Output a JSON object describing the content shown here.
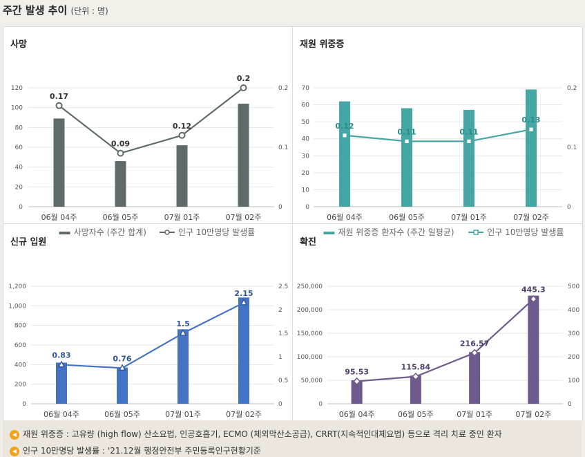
{
  "page": {
    "title": "주간 발생 추이",
    "unit": "(단위 : 명)"
  },
  "chart_data": [
    {
      "id": "death",
      "type": "bar",
      "title": "사망",
      "categories": [
        "06월 04주",
        "06월 05주",
        "07월 01주",
        "07월 02주"
      ],
      "series": [
        {
          "name": "사망자수 (주간 합계)",
          "type": "bar",
          "axis": "left",
          "values": [
            89,
            46,
            62,
            104
          ]
        },
        {
          "name": "인구 10만명당 발생률",
          "type": "line",
          "axis": "right",
          "values": [
            0.17,
            0.09,
            0.12,
            0.2
          ],
          "labels": [
            "0.17",
            "0.09",
            "0.12",
            "0.2"
          ]
        }
      ],
      "left_axis": {
        "min": 0,
        "max": 120,
        "ticks": [
          "0",
          "20",
          "40",
          "60",
          "80",
          "100",
          "120"
        ]
      },
      "right_axis": {
        "min": 0,
        "max": 0.2,
        "ticks": [
          "0",
          "0.1",
          "0.2"
        ]
      },
      "colors": {
        "bar": "#5f6b6b",
        "line": "#5f6b6b",
        "label": "#333333"
      },
      "marker": "circle"
    },
    {
      "id": "severe",
      "type": "bar",
      "title": "재원 위중증",
      "categories": [
        "06월 04주",
        "06월 05주",
        "07월 01주",
        "07월 02주"
      ],
      "series": [
        {
          "name": "재원 위중증 환자수 (주간 일평균)",
          "type": "bar",
          "axis": "left",
          "values": [
            62,
            58,
            57,
            69
          ]
        },
        {
          "name": "인구 10만명당 발생률",
          "type": "line",
          "axis": "right",
          "values": [
            0.12,
            0.11,
            0.11,
            0.13
          ],
          "labels": [
            "0.12",
            "0.11",
            "0.11",
            "0.13"
          ]
        }
      ],
      "left_axis": {
        "min": 0,
        "max": 70,
        "ticks": [
          "0",
          "10",
          "20",
          "30",
          "40",
          "50",
          "60",
          "70"
        ]
      },
      "right_axis": {
        "min": 0,
        "max": 0.2,
        "ticks": [
          "0",
          "0.1",
          "0.2"
        ]
      },
      "colors": {
        "bar": "#45a7a4",
        "line": "#45a7a4",
        "label": "#2a8a86"
      },
      "marker": "square"
    },
    {
      "id": "hospital",
      "type": "bar",
      "title": "신규 입원",
      "categories": [
        "06월 04주",
        "06월 05주",
        "07월 01주",
        "07월 02주"
      ],
      "series": [
        {
          "name": "신규 입원 환자 수 (주간 합계)",
          "type": "bar",
          "axis": "left",
          "values": [
            420,
            370,
            760,
            1085
          ]
        },
        {
          "name": "인구 10만명당 발생률",
          "type": "line",
          "axis": "right",
          "values": [
            0.83,
            0.76,
            1.5,
            2.15
          ],
          "labels": [
            "0.83",
            "0.76",
            "1.5",
            "2.15"
          ]
        }
      ],
      "left_axis": {
        "min": 0,
        "max": 1200,
        "ticks": [
          "0",
          "200",
          "400",
          "600",
          "800",
          "1,000",
          "1,200"
        ]
      },
      "right_axis": {
        "min": 0,
        "max": 2.5,
        "ticks": [
          "0",
          "0.5",
          "1",
          "1.5",
          "2",
          "2.5"
        ]
      },
      "colors": {
        "bar": "#4472c4",
        "line": "#4472c4",
        "label": "#2f5597"
      },
      "marker": "triangle"
    },
    {
      "id": "confirmed",
      "type": "bar",
      "title": "확진",
      "categories": [
        "06월 04주",
        "06월 05주",
        "07월 01주",
        "07월 02주"
      ],
      "series": [
        {
          "name": "확진자수 (주간 합계)",
          "type": "bar",
          "axis": "left",
          "values": [
            50000,
            60000,
            110000,
            230000
          ]
        },
        {
          "name": "인구 10만명당 발생률",
          "type": "line",
          "axis": "right",
          "values": [
            95.53,
            115.84,
            216.57,
            445.3
          ],
          "labels": [
            "95.53",
            "115.84",
            "216.57",
            "445.3"
          ]
        }
      ],
      "left_axis": {
        "min": 0,
        "max": 250000,
        "ticks": [
          "0",
          "50,000",
          "100,000",
          "150,000",
          "200,000",
          "250,000"
        ]
      },
      "right_axis": {
        "min": 0,
        "max": 500,
        "ticks": [
          "0",
          "100",
          "200",
          "300",
          "400",
          "500"
        ]
      },
      "colors": {
        "bar": "#6e5a8b",
        "line": "#6e5a8b",
        "label": "#4f3f6e"
      },
      "marker": "diamond"
    }
  ],
  "notes": [
    "재원 위중증 : 고유량 (high flow) 산소요법, 인공호흡기, ECMO (체외막산소공급), CRRT(지속적인대체요법) 등으로 격리 치료 중인 환자",
    "인구 10만명당 발생률 : '21.12월 행정안전부 주민등록인구현황기준"
  ]
}
